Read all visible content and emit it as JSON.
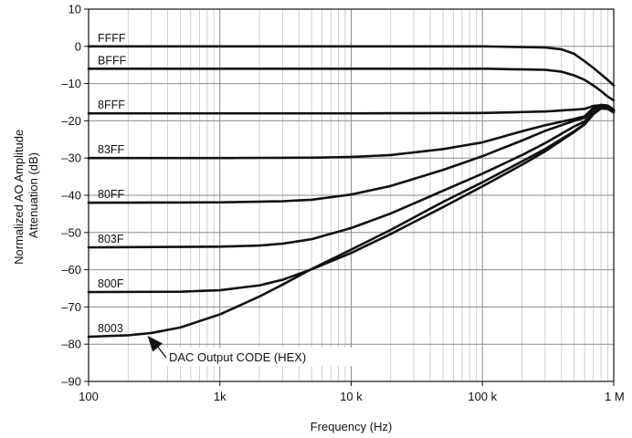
{
  "chart_data": {
    "type": "line",
    "x_scale": "log",
    "xlabel": "Frequency (Hz)",
    "ylabel_lines": [
      "Normalized AO Amplitude",
      "Attenuation (dB)"
    ],
    "xlim": [
      100,
      1000000
    ],
    "ylim": [
      -90,
      10
    ],
    "grid": true,
    "x_ticks": [
      {
        "value": 100,
        "label": "100"
      },
      {
        "value": 1000,
        "label": "1k"
      },
      {
        "value": 10000,
        "label": "10 k"
      },
      {
        "value": 100000,
        "label": "100 k"
      },
      {
        "value": 1000000,
        "label": "1 M"
      }
    ],
    "y_ticks": [
      {
        "value": 10,
        "label": "10"
      },
      {
        "value": 0,
        "label": "0"
      },
      {
        "value": -10,
        "label": "–10"
      },
      {
        "value": -20,
        "label": "–20"
      },
      {
        "value": -30,
        "label": "–30"
      },
      {
        "value": -40,
        "label": "–40"
      },
      {
        "value": -50,
        "label": "–50"
      },
      {
        "value": -60,
        "label": "–60"
      },
      {
        "value": -70,
        "label": "–70"
      },
      {
        "value": -80,
        "label": "–80"
      },
      {
        "value": -90,
        "label": "–90"
      }
    ],
    "series": [
      {
        "name": "FFFF",
        "x": [
          100,
          1000,
          10000,
          100000,
          300000,
          400000,
          500000,
          600000,
          700000,
          800000,
          900000,
          1000000
        ],
        "y": [
          0,
          0,
          0,
          0,
          -0.3,
          -0.8,
          -2,
          -4,
          -5.8,
          -7.5,
          -9,
          -10.5
        ]
      },
      {
        "name": "BFFF",
        "x": [
          100,
          1000,
          10000,
          100000,
          300000,
          400000,
          500000,
          600000,
          700000,
          800000,
          900000,
          1000000
        ],
        "y": [
          -6,
          -6,
          -6,
          -6,
          -6.3,
          -6.8,
          -7.8,
          -9,
          -10.5,
          -12,
          -13.5,
          -14.5
        ]
      },
      {
        "name": "8FFF",
        "x": [
          100,
          1000,
          10000,
          100000,
          300000,
          500000,
          600000,
          700000,
          800000,
          900000,
          1000000
        ],
        "y": [
          -18,
          -18,
          -18,
          -17.9,
          -17.5,
          -17,
          -16.8,
          -16,
          -15.8,
          -16.3,
          -17.3
        ]
      },
      {
        "name": "83FF",
        "x": [
          100,
          1000,
          5000,
          10000,
          20000,
          50000,
          100000,
          200000,
          300000,
          500000,
          600000,
          700000,
          800000,
          900000,
          1000000
        ],
        "y": [
          -30,
          -30,
          -29.9,
          -29.7,
          -29.2,
          -27.6,
          -25.8,
          -22.8,
          -21.2,
          -19.5,
          -18.8,
          -16.5,
          -15.7,
          -15.9,
          -17
        ]
      },
      {
        "name": "80FF",
        "x": [
          100,
          1000,
          3000,
          5000,
          10000,
          20000,
          50000,
          100000,
          200000,
          300000,
          500000,
          600000,
          700000,
          800000,
          900000,
          1000000
        ],
        "y": [
          -42,
          -41.9,
          -41.6,
          -41.2,
          -39.8,
          -37.5,
          -33.2,
          -29.5,
          -25.3,
          -22.7,
          -20,
          -19.2,
          -16.8,
          -15.8,
          -16,
          -17.1
        ]
      },
      {
        "name": "803F",
        "x": [
          100,
          1000,
          2000,
          3000,
          5000,
          10000,
          20000,
          50000,
          100000,
          200000,
          300000,
          500000,
          600000,
          700000,
          800000,
          900000,
          1000000
        ],
        "y": [
          -54,
          -53.8,
          -53.5,
          -53,
          -51.8,
          -48.8,
          -44.9,
          -38.8,
          -34.2,
          -29.2,
          -26,
          -21.5,
          -20.2,
          -17.6,
          -16.2,
          -16.3,
          -17.3
        ]
      },
      {
        "name": "800F",
        "x": [
          100,
          500,
          1000,
          2000,
          3000,
          5000,
          10000,
          20000,
          50000,
          100000,
          200000,
          300000,
          500000,
          600000,
          700000,
          800000,
          900000,
          1000000
        ],
        "y": [
          -66,
          -65.9,
          -65.5,
          -64.2,
          -62.7,
          -59.9,
          -55.5,
          -50.4,
          -43.2,
          -37.6,
          -31.8,
          -28.2,
          -23,
          -21,
          -18.2,
          -16.6,
          -16.6,
          -17.5
        ]
      },
      {
        "name": "8003",
        "x": [
          100,
          200,
          300,
          500,
          1000,
          2000,
          3000,
          5000,
          10000,
          20000,
          50000,
          100000,
          200000,
          300000,
          500000,
          600000,
          700000,
          800000,
          900000,
          1000000
        ],
        "y": [
          -78,
          -77.6,
          -77,
          -75.5,
          -72,
          -67.2,
          -64,
          -59.8,
          -54.6,
          -49.3,
          -41.8,
          -36.5,
          -30.9,
          -27.6,
          -22.8,
          -20.8,
          -18.2,
          -16.7,
          -16.8,
          -17.8
        ]
      }
    ],
    "annotations": [
      {
        "text": "DAC Output CODE (HEX)",
        "points_to": {
          "x": 300,
          "y": -77
        }
      }
    ]
  }
}
